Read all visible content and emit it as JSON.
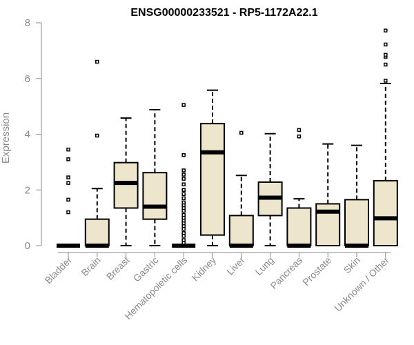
{
  "chart_data": {
    "type": "boxplot",
    "title": "ENSG00000233521 - RP5-1172A22.1",
    "xlabel": "",
    "ylabel": "Expression",
    "ylim": [
      0,
      8
    ],
    "yticks": [
      0,
      2,
      4,
      6,
      8
    ],
    "grid": false,
    "categories": [
      "Bladder",
      "Brain",
      "Breast",
      "Gastric",
      "Hematopoietic cells",
      "Kidney",
      "Liver",
      "Lung",
      "Pancreas",
      "Prostate",
      "Skin",
      "Unknown / Other"
    ],
    "box_color": "#ede6cc",
    "boxes": [
      {
        "name": "Bladder",
        "min": 0,
        "q1": 0,
        "median": 0,
        "q3": 0,
        "max": 0,
        "outliers": [
          1.2,
          1.65,
          2.25,
          2.45,
          3.1,
          3.45
        ]
      },
      {
        "name": "Brain",
        "min": 0,
        "q1": 0,
        "median": 0,
        "q3": 0.95,
        "max": 2.05,
        "outliers": [
          3.95,
          6.6
        ]
      },
      {
        "name": "Breast",
        "min": 0,
        "q1": 1.35,
        "median": 2.25,
        "q3": 2.98,
        "max": 4.58,
        "outliers": []
      },
      {
        "name": "Gastric",
        "min": 0,
        "q1": 0.95,
        "median": 1.4,
        "q3": 2.62,
        "max": 4.88,
        "outliers": []
      },
      {
        "name": "Hematopoietic cells",
        "min": 0,
        "q1": 0,
        "median": 0,
        "q3": 0,
        "max": 0,
        "outliers": [
          0.1,
          0.2,
          0.35,
          0.45,
          0.6,
          0.7,
          0.8,
          0.9,
          1.0,
          1.1,
          1.25,
          1.35,
          1.45,
          1.55,
          1.7,
          1.85,
          2.0,
          2.2,
          2.4,
          2.55,
          2.7,
          3.25,
          5.05
        ]
      },
      {
        "name": "Kidney",
        "min": 0,
        "q1": 0.38,
        "median": 3.35,
        "q3": 4.38,
        "max": 5.58,
        "outliers": []
      },
      {
        "name": "Liver",
        "min": 0,
        "q1": 0,
        "median": 0,
        "q3": 1.08,
        "max": 2.52,
        "outliers": [
          4.05
        ]
      },
      {
        "name": "Lung",
        "min": 0,
        "q1": 1.08,
        "median": 1.72,
        "q3": 2.28,
        "max": 4.02,
        "outliers": []
      },
      {
        "name": "Pancreas",
        "min": 0,
        "q1": 0,
        "median": 0,
        "q3": 1.35,
        "max": 1.68,
        "outliers": [
          3.92,
          4.15
        ]
      },
      {
        "name": "Prostate",
        "min": 0,
        "q1": 0,
        "median": 1.22,
        "q3": 1.5,
        "max": 3.65,
        "outliers": []
      },
      {
        "name": "Skin",
        "min": 0,
        "q1": 0,
        "median": 0,
        "q3": 1.65,
        "max": 3.6,
        "outliers": []
      },
      {
        "name": "Unknown / Other",
        "min": 0,
        "q1": 0,
        "median": 0.98,
        "q3": 2.33,
        "max": 5.82,
        "outliers": [
          5.92,
          6.5,
          6.78,
          6.85,
          7.22,
          7.72
        ]
      }
    ]
  }
}
